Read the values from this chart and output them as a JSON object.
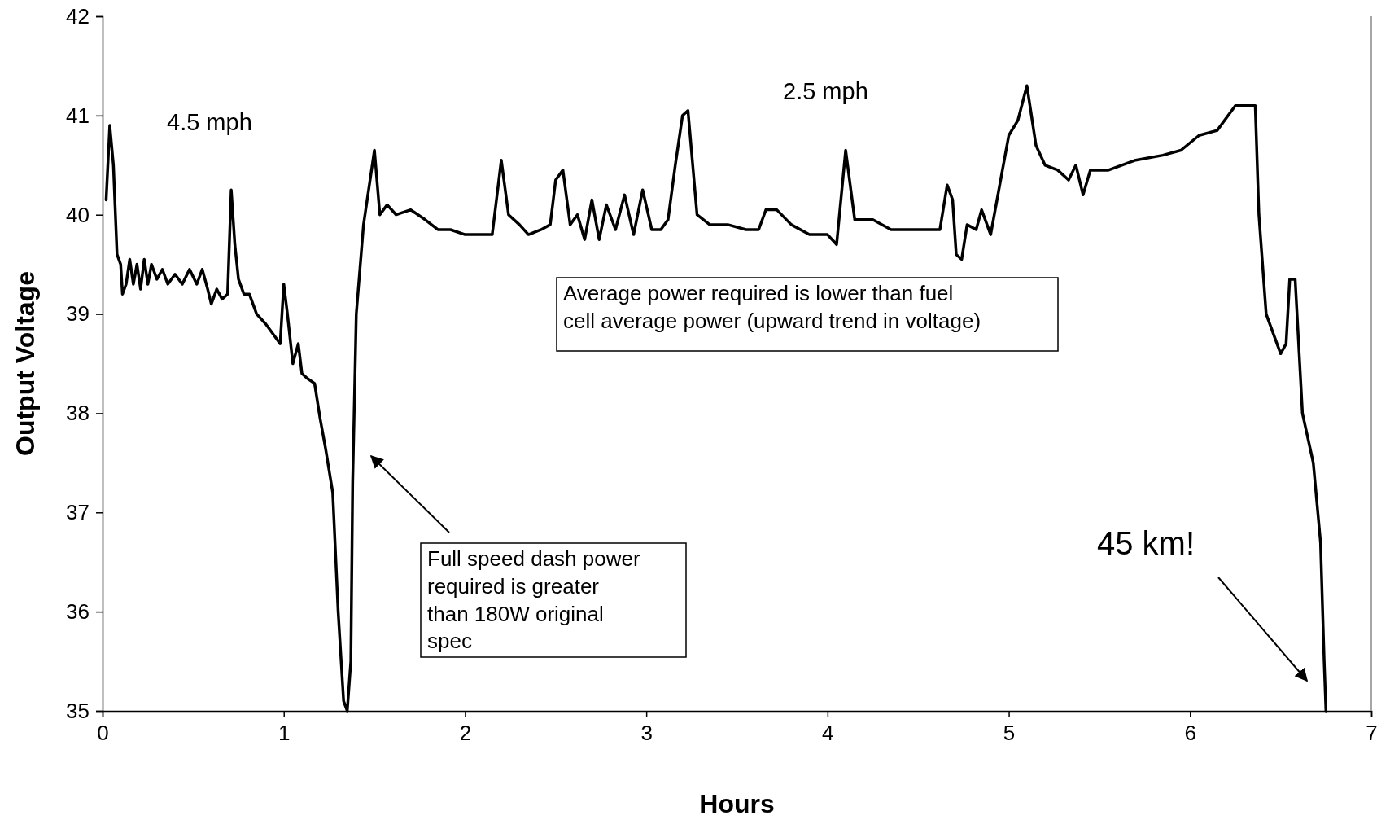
{
  "chart_data": {
    "type": "line",
    "xlabel": "Hours",
    "ylabel": "Output Voltage",
    "xlim": [
      0,
      7
    ],
    "xticks": [
      0,
      1,
      2,
      3,
      4,
      5,
      6,
      7
    ],
    "ylim": [
      35,
      42
    ],
    "yticks": [
      35,
      36,
      37,
      38,
      39,
      40,
      41,
      42
    ],
    "grid": false,
    "marker": "none",
    "line_style": "solid",
    "annotations": [
      "4.5 mph",
      "2.5 mph",
      "Average power required is lower than fuel cell average power (upward trend in voltage)",
      "Full speed dash power required is greater than 180W original spec",
      "45 km!"
    ],
    "series": [
      {
        "color": "#000000",
        "x": [
          0.02,
          0.04,
          0.06,
          0.08,
          0.1,
          0.11,
          0.13,
          0.15,
          0.17,
          0.19,
          0.21,
          0.23,
          0.25,
          0.27,
          0.3,
          0.33,
          0.36,
          0.4,
          0.44,
          0.48,
          0.52,
          0.55,
          0.58,
          0.6,
          0.63,
          0.66,
          0.69,
          0.71,
          0.73,
          0.75,
          0.78,
          0.81,
          0.85,
          0.9,
          0.96,
          0.98,
          1.0,
          1.02,
          1.05,
          1.08,
          1.1,
          1.13,
          1.17,
          1.2,
          1.23,
          1.27,
          1.3,
          1.33,
          1.35,
          1.37,
          1.38,
          1.4,
          1.44,
          1.48,
          1.5,
          1.53,
          1.57,
          1.62,
          1.7,
          1.78,
          1.85,
          1.92,
          2.0,
          2.08,
          2.15,
          2.2,
          2.24,
          2.3,
          2.35,
          2.42,
          2.47,
          2.5,
          2.54,
          2.58,
          2.62,
          2.66,
          2.7,
          2.74,
          2.78,
          2.83,
          2.88,
          2.93,
          2.98,
          3.03,
          3.08,
          3.12,
          3.16,
          3.2,
          3.23,
          3.28,
          3.35,
          3.45,
          3.55,
          3.62,
          3.66,
          3.72,
          3.8,
          3.9,
          4.0,
          4.05,
          4.1,
          4.15,
          4.25,
          4.35,
          4.5,
          4.62,
          4.66,
          4.69,
          4.71,
          4.74,
          4.77,
          4.82,
          4.85,
          4.9,
          4.95,
          5.0,
          5.05,
          5.1,
          5.15,
          5.2,
          5.27,
          5.33,
          5.37,
          5.41,
          5.45,
          5.55,
          5.7,
          5.85,
          5.95,
          6.05,
          6.15,
          6.25,
          6.33,
          6.36,
          6.38,
          6.42,
          6.47,
          6.5,
          6.53,
          6.55,
          6.58,
          6.62,
          6.68,
          6.72,
          6.74,
          6.75
        ],
        "values": [
          40.15,
          40.9,
          40.5,
          39.6,
          39.5,
          39.2,
          39.3,
          39.55,
          39.3,
          39.5,
          39.25,
          39.55,
          39.3,
          39.5,
          39.35,
          39.45,
          39.3,
          39.4,
          39.3,
          39.45,
          39.3,
          39.45,
          39.25,
          39.1,
          39.25,
          39.15,
          39.2,
          40.25,
          39.7,
          39.35,
          39.2,
          39.2,
          39.0,
          38.9,
          38.75,
          38.7,
          39.3,
          39.0,
          38.5,
          38.7,
          38.4,
          38.35,
          38.3,
          37.95,
          37.65,
          37.2,
          36.0,
          35.1,
          35.0,
          35.5,
          37.3,
          39.0,
          39.9,
          40.4,
          40.65,
          40.0,
          40.1,
          40.0,
          40.05,
          39.95,
          39.85,
          39.85,
          39.8,
          39.8,
          39.8,
          40.55,
          40.0,
          39.9,
          39.8,
          39.85,
          39.9,
          40.35,
          40.45,
          39.9,
          40.0,
          39.75,
          40.15,
          39.75,
          40.1,
          39.85,
          40.2,
          39.8,
          40.25,
          39.85,
          39.85,
          39.95,
          40.5,
          41.0,
          41.05,
          40.0,
          39.9,
          39.9,
          39.85,
          39.85,
          40.05,
          40.05,
          39.9,
          39.8,
          39.8,
          39.7,
          40.65,
          39.95,
          39.95,
          39.85,
          39.85,
          39.85,
          40.3,
          40.15,
          39.6,
          39.55,
          39.9,
          39.85,
          40.05,
          39.8,
          40.3,
          40.8,
          40.95,
          41.3,
          40.7,
          40.5,
          40.45,
          40.35,
          40.5,
          40.2,
          40.45,
          40.45,
          40.55,
          40.6,
          40.65,
          40.8,
          40.85,
          41.1,
          41.1,
          41.1,
          40.0,
          39.0,
          38.75,
          38.6,
          38.7,
          39.35,
          39.35,
          38.0,
          37.5,
          36.7,
          35.5,
          35.0
        ]
      }
    ]
  }
}
